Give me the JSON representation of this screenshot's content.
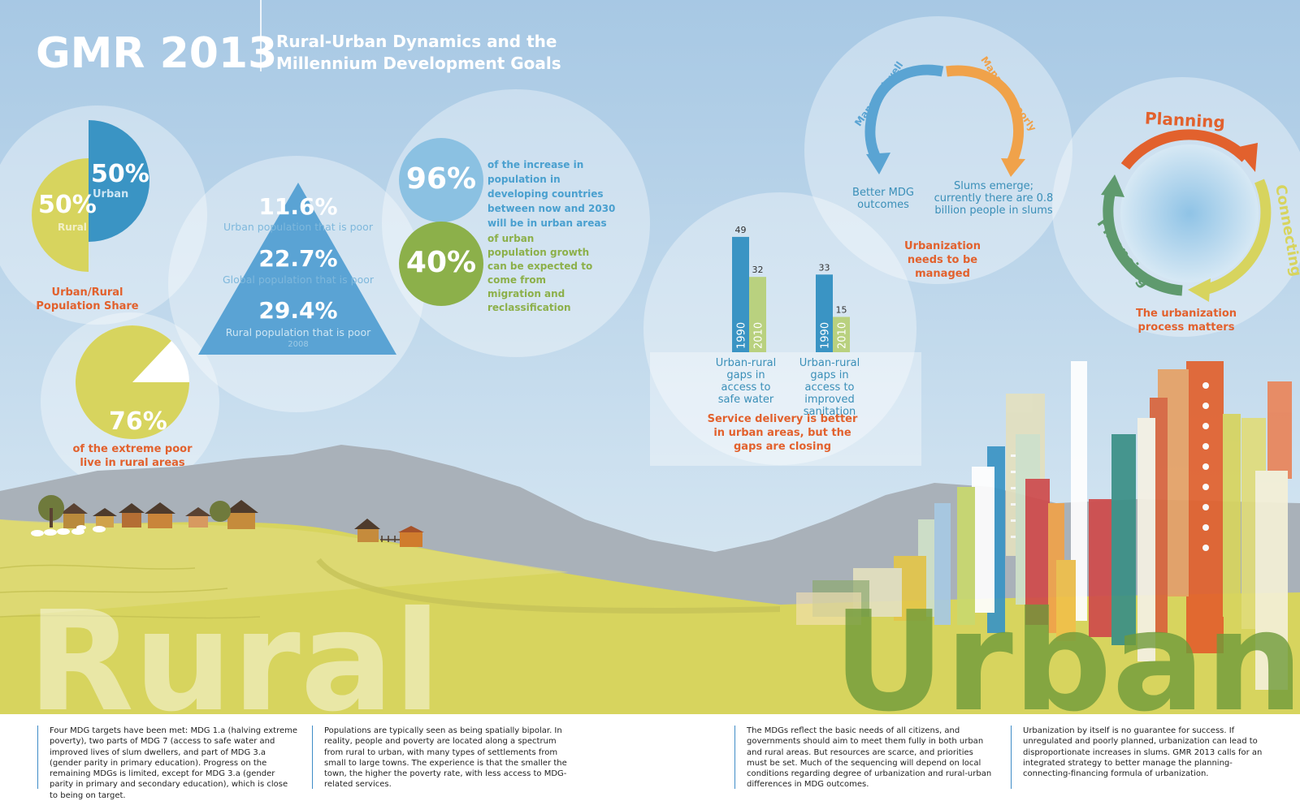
{
  "header": {
    "title": "GMR 2013",
    "subtitle_line1": "Rural-Urban Dynamics and the",
    "subtitle_line2": "Millennium Development Goals"
  },
  "share": {
    "urban_pct": "50%",
    "urban_label": "Urban",
    "rural_pct": "50%",
    "rural_label": "Rural",
    "caption": "Urban/Rural Population Share"
  },
  "poor_rural": {
    "pct": "76%",
    "caption": "of the extreme poor live in rural areas"
  },
  "pyramid": {
    "tier1_value": "11.6%",
    "tier1_label": "Urban population that is poor",
    "tier2_value": "22.7%",
    "tier2_label": "Global population that is poor",
    "tier3_value": "29.4%",
    "tier3_label": "Rural population that is poor",
    "year": "2008"
  },
  "growth": {
    "stat1_value": "96%",
    "stat1_text": "of the increase in population in developing countries between now and 2030 will be in urban areas",
    "stat2_value": "40%",
    "stat2_text": "of urban population growth can be expected to come from migration and reclassification"
  },
  "managed": {
    "arc_left": "Managed well",
    "arc_right": "Managed poorly",
    "left_outcome": "Better MDG outcomes",
    "right_outcome": "Slums emerge; currently there are 0.8 billion people in slums",
    "caption": "Urbanization needs to be managed"
  },
  "process": {
    "label_top": "Planning",
    "label_right": "Connecting",
    "label_left": "Financing",
    "caption": "The urbanization process matters"
  },
  "chart_data": {
    "type": "bar",
    "groups": [
      "Urban-rural gaps in access to safe water",
      "Urban-rural gaps in access to improved sanitation"
    ],
    "categories": [
      "1990",
      "2010"
    ],
    "series": [
      {
        "name": "1990",
        "values": [
          49,
          33
        ]
      },
      {
        "name": "2010",
        "values": [
          32,
          15
        ]
      }
    ],
    "ylim": [
      0,
      50
    ],
    "caption": "Service delivery is better in urban areas, but the gaps are closing",
    "colors": {
      "1990": "#3a94c4",
      "2010": "#b9d17f"
    }
  },
  "landscape": {
    "rural_word": "Rural",
    "urban_word": "Urban"
  },
  "footer": {
    "col1": "Four MDG targets have been met: MDG 1.a (halving extreme poverty), two parts of MDG 7 (access to safe water and improved lives of slum dwellers, and part of MDG 3.a (gender parity in primary education). Progress on the remaining MDGs is limited, except for MDG 3.a (gender parity in primary and secondary education), which is close to being on target.",
    "col2": "Populations are typically seen as being spatially bipolar. In reality, people and poverty are located along a spectrum from rural to urban, with many types of settlements from small to large towns. The experience is that the smaller the town, the higher the poverty rate, with less access to MDG-related services.",
    "col3": "The MDGs reflect the basic needs of all citizens, and governments should aim to meet them fully in both urban and rural areas. But resources are scarce, and priorities must be set. Much of the sequencing will depend on local conditions regarding degree of urbanization and rural-urban differences in MDG outcomes.",
    "col4": "Urbanization by itself is no guarantee for success. If unregulated and poorly planned, urbanization can lead to disproportionate increases in slums. GMR 2013 calls for an integrated strategy to better manage the planning-connecting-financing formula of urbanization."
  },
  "colors": {
    "sky_top": "#a5c9e6",
    "blue": "#3a94c4",
    "yellow": "#d7d45e",
    "green": "#8cb04a",
    "orange": "#e2612d"
  }
}
